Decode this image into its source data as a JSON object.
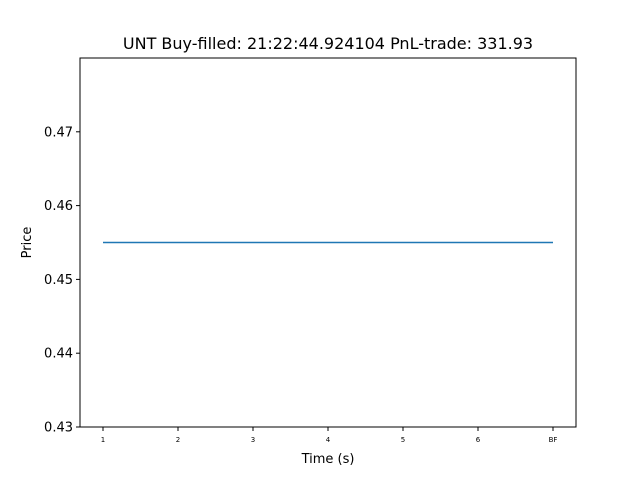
{
  "chart_data": {
    "type": "line",
    "title": "UNT  Buy-filled:  21:22:44.924104  PnL-trade:  331.93",
    "xlabel": "Time (s)",
    "ylabel": "Price",
    "categories": [
      "1",
      "2",
      "3",
      "4",
      "5",
      "6",
      "BF"
    ],
    "series": [
      {
        "values": [
          0.455,
          0.455,
          0.455,
          0.455,
          0.455,
          0.455,
          0.455
        ],
        "color": "#1f77b4"
      }
    ],
    "ylim": [
      0.43,
      0.48
    ],
    "yticks": [
      0.43,
      0.44,
      0.45,
      0.46,
      0.47
    ],
    "ytick_labels": [
      "0.43",
      "0.44",
      "0.45",
      "0.46",
      "0.47"
    ],
    "grid": false
  }
}
